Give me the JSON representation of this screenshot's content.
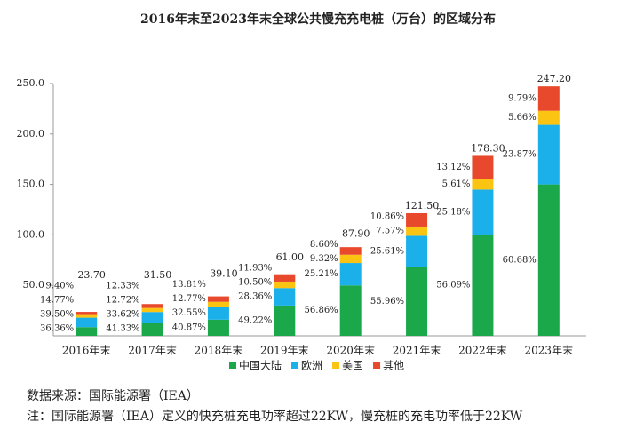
{
  "chart_data": {
    "type": "stacked_bar",
    "title": "2016年末至2023年末全球公共慢充充电桩（万台）的区域分布",
    "categories": [
      "2016年末",
      "2017年末",
      "2018年末",
      "2019年末",
      "2020年末",
      "2021年末",
      "2022年末",
      "2023年末"
    ],
    "totals": {
      "values": [
        23.7,
        31.5,
        39.1,
        61.0,
        87.9,
        121.5,
        178.3,
        247.2
      ],
      "value_labels": [
        "23.70",
        "31.50",
        "39.10",
        "61.00",
        "87.90",
        "121.50",
        "178.30",
        "247.20"
      ]
    },
    "series": [
      {
        "name": "中国大陆",
        "color": "#1aa84b",
        "values": [
          36.36,
          41.33,
          40.87,
          49.22,
          56.86,
          55.96,
          56.09,
          60.68
        ],
        "value_labels": [
          "36.36%",
          "41.33%",
          "40.87%",
          "49.22%",
          "56.86%",
          "55.96%",
          "56.09%",
          "60.68%"
        ]
      },
      {
        "name": "欧洲",
        "color": "#1cb0ea",
        "values": [
          39.5,
          33.62,
          32.55,
          28.36,
          25.21,
          25.61,
          25.18,
          23.87
        ],
        "value_labels": [
          "39.50%",
          "33.62%",
          "32.55%",
          "28.36%",
          "25.21%",
          "25.61%",
          "25.18%",
          "23.87%"
        ]
      },
      {
        "name": "美国",
        "color": "#fbc312",
        "values": [
          14.77,
          12.72,
          12.77,
          10.5,
          9.32,
          7.57,
          5.61,
          5.66
        ],
        "value_labels": [
          "14.77%",
          "12.72%",
          "12.77%",
          "10.50%",
          "9.32%",
          "7.57%",
          "5.61%",
          "5.66%"
        ]
      },
      {
        "name": "其他",
        "color": "#e8482b",
        "values": [
          9.4,
          12.33,
          13.81,
          11.93,
          8.6,
          10.86,
          13.12,
          9.79
        ],
        "value_labels": [
          "9.40%",
          "12.33%",
          "13.81%",
          "11.93%",
          "8.60%",
          "10.86%",
          "13.12%",
          "9.79%"
        ]
      }
    ],
    "ylim": [
      0,
      250
    ],
    "yticks": [
      {
        "value": 50,
        "label": "50.0"
      },
      {
        "value": 100,
        "label": "100.0"
      },
      {
        "value": 150,
        "label": "150.0"
      },
      {
        "value": 200,
        "label": "200.0"
      },
      {
        "value": 250,
        "label": "250.0"
      }
    ],
    "legend": "bottom",
    "source": "数据来源：国际能源署（IEA）",
    "note": "注：国际能源署（IEA）定义的快充桩充电功率超过22KW，慢充桩的充电功率低于22KW"
  }
}
